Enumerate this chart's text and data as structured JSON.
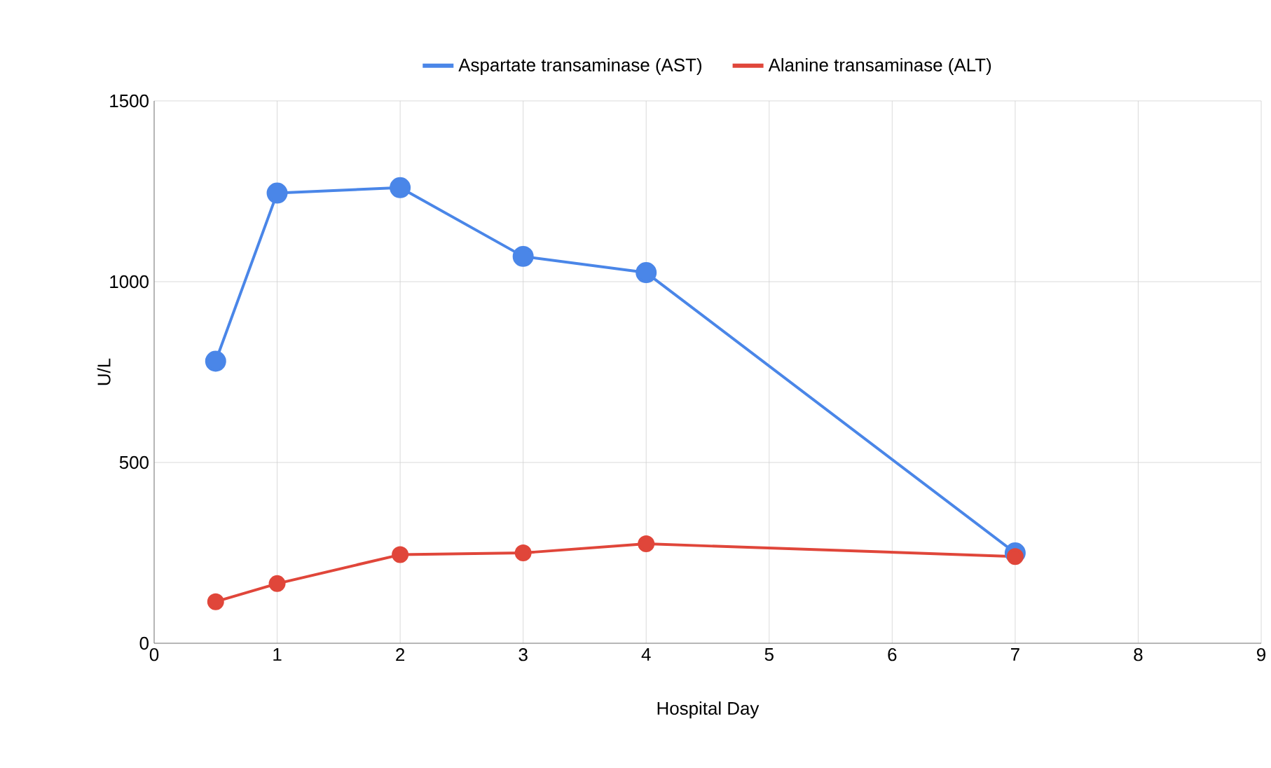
{
  "chart_data": {
    "type": "line",
    "xlabel": "Hospital Day",
    "ylabel": "U/L",
    "series": [
      {
        "name": "Aspartate transaminase (AST)",
        "color": "#4a86e8",
        "x": [
          0.5,
          1,
          2,
          3,
          4,
          7
        ],
        "values": [
          780,
          1245,
          1260,
          1070,
          1025,
          250
        ]
      },
      {
        "name": "Alanine transaminase (ALT)",
        "color": "#e0463a",
        "x": [
          0.5,
          1,
          2,
          3,
          4,
          7
        ],
        "values": [
          115,
          165,
          245,
          250,
          275,
          240
        ]
      }
    ],
    "xlim": [
      0,
      9
    ],
    "xticks": [
      0,
      1,
      2,
      3,
      4,
      5,
      6,
      7,
      8,
      9
    ],
    "ylim": [
      0,
      1500
    ],
    "yticks": [
      0,
      500,
      1000,
      1500
    ],
    "grid": true,
    "legend": "top",
    "marker": "circle",
    "line_style": "solid"
  }
}
